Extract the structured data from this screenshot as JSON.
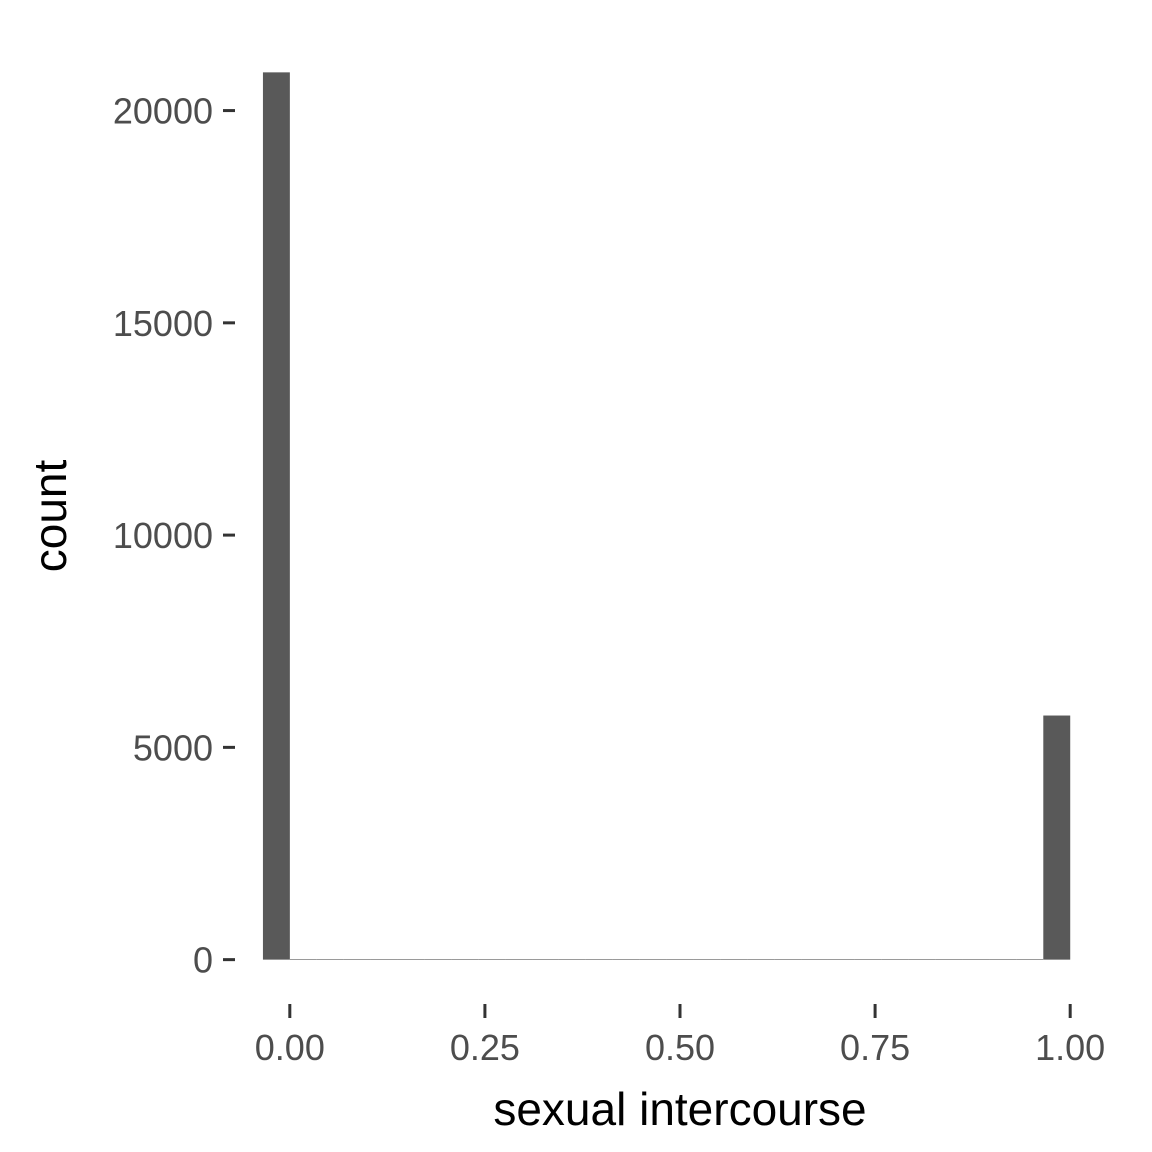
{
  "chart_data": {
    "type": "bar",
    "title": "",
    "xlabel": "sexual intercourse",
    "ylabel": "count",
    "x": [
      -0.0172,
      0.0172,
      0.0517,
      0.0862,
      0.1207,
      0.1552,
      0.1897,
      0.2241,
      0.2586,
      0.2931,
      0.3276,
      0.3621,
      0.3966,
      0.431,
      0.4655,
      0.5,
      0.5345,
      0.569,
      0.6034,
      0.6379,
      0.6724,
      0.7069,
      0.7414,
      0.7759,
      0.8103,
      0.8448,
      0.8793,
      0.9138,
      0.9483,
      0.9828,
      1.0172
    ],
    "bin_width": 0.0345,
    "bar_values": [
      20900,
      0,
      0,
      0,
      0,
      0,
      0,
      0,
      0,
      0,
      0,
      0,
      0,
      0,
      0,
      0,
      0,
      0,
      0,
      0,
      0,
      0,
      0,
      0,
      0,
      0,
      0,
      0,
      0,
      5750
    ],
    "xlim": [
      -0.06,
      1.06
    ],
    "ylim": [
      -1045,
      21945
    ],
    "x_ticks": [
      0,
      0.25,
      0.5,
      0.75,
      1
    ],
    "x_tick_labels": [
      "0.00",
      "0.25",
      "0.50",
      "0.75",
      "1.00"
    ],
    "y_ticks": [
      0,
      5000,
      10000,
      15000,
      20000
    ],
    "y_tick_labels": [
      "0",
      "5000",
      "10000",
      "15000",
      "20000"
    ],
    "grid": false,
    "colors": {
      "bar": "#595959",
      "tick": "#333333",
      "tick_label": "#4d4d4d",
      "axis_title": "#000000"
    }
  }
}
